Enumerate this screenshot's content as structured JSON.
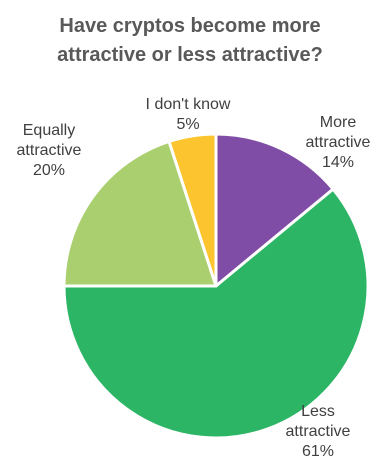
{
  "chart_data": {
    "type": "pie",
    "title_lines": [
      "Have cryptos become more",
      "attractive or less attractive?"
    ],
    "slices": [
      {
        "label_lines": [
          "More",
          "attractive"
        ],
        "value": 14,
        "value_label": "14%",
        "color": "#7F4DA5"
      },
      {
        "label_lines": [
          "Less",
          "attractive"
        ],
        "value": 61,
        "value_label": "61%",
        "color": "#2DB566"
      },
      {
        "label_lines": [
          "Equally",
          "attractive"
        ],
        "value": 20,
        "value_label": "20%",
        "color": "#A9CF6E"
      },
      {
        "label_lines": [
          "I don't know"
        ],
        "value": 5,
        "value_label": "5%",
        "color": "#FCC530"
      }
    ],
    "start": "12 o'clock",
    "direction": "clockwise",
    "legend": "none"
  }
}
